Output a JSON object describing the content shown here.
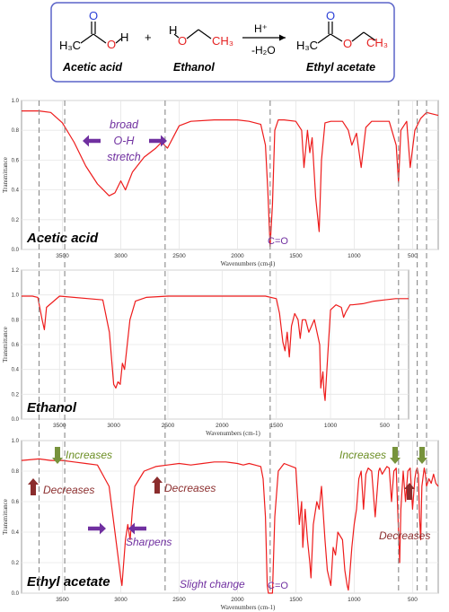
{
  "reaction": {
    "acid_name": "Acetic acid",
    "ethanol_name": "Ethanol",
    "ester_name": "Ethyl acetate",
    "plus": "+",
    "arrow_top": "H⁺",
    "arrow_bottom": "-H₂O",
    "acid_formula": "H₃C",
    "acid_o": "O",
    "acid_h": "H",
    "eth_h": "H",
    "eth_o": "O",
    "eth_ch3": "CH₃",
    "ester_h3c": "H₃C",
    "ester_o": "O",
    "ester_ch3": "CH₃",
    "colors": {
      "carbonyl_o": "#2a3fd6",
      "alcohol_o": "#e52222",
      "box": "#5a63c8"
    }
  },
  "chart_data": [
    {
      "type": "line",
      "name": "Acetic acid",
      "xlabel": "Wavenumbers (cm-1)",
      "ylabel": "Transmittance",
      "xlim": [
        3850,
        280
      ],
      "ylim": [
        0.0,
        1.0
      ],
      "x_ticks": [
        3500,
        3000,
        2500,
        2000,
        1500,
        1000,
        500
      ],
      "y_ticks": [
        0.0,
        0.2,
        0.4,
        0.6,
        0.8,
        1.0
      ],
      "series": [
        {
          "color": "#ee1c1c",
          "x": [
            3850,
            3700,
            3600,
            3500,
            3400,
            3300,
            3200,
            3150,
            3100,
            3050,
            3000,
            2960,
            2940,
            2900,
            2800,
            2700,
            2650,
            2600,
            2560,
            2500,
            2400,
            2200,
            2000,
            1900,
            1800,
            1760,
            1740,
            1720,
            1700,
            1680,
            1650,
            1600,
            1500,
            1450,
            1430,
            1400,
            1380,
            1360,
            1330,
            1300,
            1280,
            1250,
            1200,
            1100,
            1050,
            1020,
            980,
            940,
            900,
            850,
            800,
            700,
            640,
            620,
            600,
            550,
            520,
            480,
            430,
            380,
            280
          ],
          "y": [
            0.93,
            0.93,
            0.92,
            0.85,
            0.72,
            0.56,
            0.44,
            0.4,
            0.36,
            0.38,
            0.46,
            0.4,
            0.44,
            0.52,
            0.62,
            0.68,
            0.72,
            0.68,
            0.74,
            0.83,
            0.86,
            0.87,
            0.87,
            0.86,
            0.84,
            0.7,
            0.4,
            0.02,
            0.3,
            0.8,
            0.87,
            0.87,
            0.86,
            0.8,
            0.55,
            0.8,
            0.65,
            0.75,
            0.35,
            0.12,
            0.6,
            0.85,
            0.86,
            0.86,
            0.8,
            0.7,
            0.78,
            0.55,
            0.82,
            0.86,
            0.86,
            0.86,
            0.7,
            0.45,
            0.8,
            0.86,
            0.55,
            0.8,
            0.88,
            0.92,
            0.9
          ]
        }
      ],
      "dashed_lines_x": [
        3700,
        3480,
        2620,
        1720,
        620,
        460,
        380
      ],
      "overlay_title": "Acetic acid",
      "annotations": {
        "broad": "broad",
        "oh": "O-H",
        "stretch": "stretch",
        "co": "C=O"
      }
    },
    {
      "type": "line",
      "name": "Ethanol",
      "xlabel": "Wavenumbers (cm-1)",
      "ylabel": "Transmittance",
      "xlim": [
        3850,
        280
      ],
      "ylim": [
        0.0,
        1.2
      ],
      "x_ticks": [
        3500,
        3000,
        2500,
        2000,
        1500,
        1000,
        500
      ],
      "y_ticks": [
        0.0,
        0.2,
        0.4,
        0.6,
        0.8,
        1.0,
        1.2
      ],
      "series": [
        {
          "color": "#ee1c1c",
          "x": [
            3850,
            3750,
            3700,
            3660,
            3640,
            3620,
            3500,
            3100,
            3040,
            3000,
            2980,
            2960,
            2940,
            2920,
            2900,
            2850,
            2800,
            2700,
            2500,
            2300,
            2000,
            1800,
            1600,
            1500,
            1470,
            1440,
            1420,
            1400,
            1380,
            1360,
            1330,
            1300,
            1280,
            1260,
            1230,
            1200,
            1150,
            1100,
            1090,
            1070,
            1060,
            1050,
            1040,
            1020,
            1000,
            950,
            900,
            880,
            860,
            820,
            800,
            700,
            600,
            500,
            400,
            280
          ],
          "y": [
            0.99,
            0.99,
            0.98,
            0.8,
            0.72,
            0.9,
            0.99,
            0.96,
            0.7,
            0.28,
            0.25,
            0.3,
            0.28,
            0.45,
            0.4,
            0.8,
            0.95,
            0.98,
            0.99,
            0.99,
            0.99,
            0.99,
            0.99,
            0.97,
            0.85,
            0.62,
            0.55,
            0.7,
            0.5,
            0.75,
            0.85,
            0.8,
            0.65,
            0.8,
            0.8,
            0.7,
            0.8,
            0.6,
            0.25,
            0.38,
            0.22,
            0.15,
            0.3,
            0.6,
            0.88,
            0.92,
            0.9,
            0.82,
            0.86,
            0.92,
            0.92,
            0.93,
            0.95,
            0.96,
            0.97,
            0.97
          ]
        }
      ],
      "dashed_lines_x": [
        3700,
        3480,
        2620,
        1720,
        620,
        460,
        380
      ],
      "overlay_title": "Ethanol"
    },
    {
      "type": "line",
      "name": "Ethyl acetate",
      "xlabel": "Wavenumbers (cm-1)",
      "ylabel": "Transmittance",
      "xlim": [
        3850,
        280
      ],
      "ylim": [
        0.0,
        1.0
      ],
      "x_ticks": [
        3500,
        3000,
        2500,
        2000,
        1500,
        1000,
        500
      ],
      "y_ticks": [
        0.0,
        0.2,
        0.4,
        0.6,
        0.8,
        1.0
      ],
      "series": [
        {
          "color": "#ee1c1c",
          "x": [
            3850,
            3700,
            3600,
            3500,
            3400,
            3300,
            3200,
            3100,
            3050,
            3000,
            2990,
            2980,
            2960,
            2940,
            2920,
            2900,
            2880,
            2800,
            2700,
            2600,
            2500,
            2400,
            2300,
            2200,
            2100,
            2000,
            1950,
            1900,
            1850,
            1800,
            1780,
            1760,
            1745,
            1735,
            1720,
            1700,
            1680,
            1650,
            1600,
            1500,
            1470,
            1450,
            1440,
            1420,
            1400,
            1380,
            1370,
            1350,
            1320,
            1300,
            1280,
            1250,
            1230,
            1200,
            1180,
            1160,
            1140,
            1100,
            1080,
            1060,
            1050,
            1040,
            1020,
            1000,
            980,
            960,
            940,
            920,
            900,
            880,
            850,
            820,
            790,
            780,
            760,
            720,
            700,
            680,
            660,
            640,
            620,
            610,
            600,
            580,
            560,
            540,
            520,
            500,
            480,
            470,
            460,
            450,
            440,
            430,
            420,
            400,
            390,
            380,
            360,
            340,
            320,
            300,
            280
          ],
          "y": [
            0.87,
            0.88,
            0.87,
            0.87,
            0.86,
            0.85,
            0.84,
            0.7,
            0.4,
            0.1,
            0.05,
            0.15,
            0.35,
            0.45,
            0.35,
            0.55,
            0.7,
            0.8,
            0.83,
            0.84,
            0.85,
            0.84,
            0.85,
            0.86,
            0.86,
            0.85,
            0.84,
            0.85,
            0.84,
            0.83,
            0.75,
            0.5,
            0.05,
            0.0,
            0.0,
            0.0,
            0.5,
            0.8,
            0.85,
            0.82,
            0.45,
            0.6,
            0.3,
            0.55,
            0.35,
            0.2,
            0.1,
            0.45,
            0.6,
            0.55,
            0.7,
            0.35,
            0.15,
            0.05,
            0.3,
            0.25,
            0.4,
            0.35,
            0.15,
            0.05,
            0.02,
            0.1,
            0.3,
            0.45,
            0.55,
            0.75,
            0.8,
            0.55,
            0.78,
            0.82,
            0.8,
            0.5,
            0.8,
            0.82,
            0.78,
            0.83,
            0.82,
            0.6,
            0.8,
            0.82,
            0.4,
            0.2,
            0.55,
            0.8,
            0.6,
            0.8,
            0.82,
            0.55,
            0.75,
            0.8,
            0.82,
            0.78,
            0.5,
            0.35,
            0.7,
            0.82,
            0.78,
            0.7,
            0.75,
            0.72,
            0.78,
            0.72,
            0.7
          ]
        }
      ],
      "dashed_lines_x": [
        3700,
        3480,
        2620,
        1720,
        620,
        460,
        380
      ],
      "overlay_title": "Ethyl acetate",
      "annotations": {
        "increases_left": "Increases",
        "decreases_left": "Decreases",
        "decreases_mid": "Decreases",
        "sharpens": "Sharpens",
        "slight_change": "Slight change",
        "co": "C=O",
        "increases_right": "Increases",
        "decreases_right": "Decreases"
      }
    }
  ],
  "annotation_colors": {
    "purple": "#7030a0",
    "green": "#6b8e23",
    "brown": "#8b2d2d",
    "arrow_purple": "#7030a0",
    "arrow_green": "#77933c",
    "arrow_brown": "#8b2d2d"
  }
}
